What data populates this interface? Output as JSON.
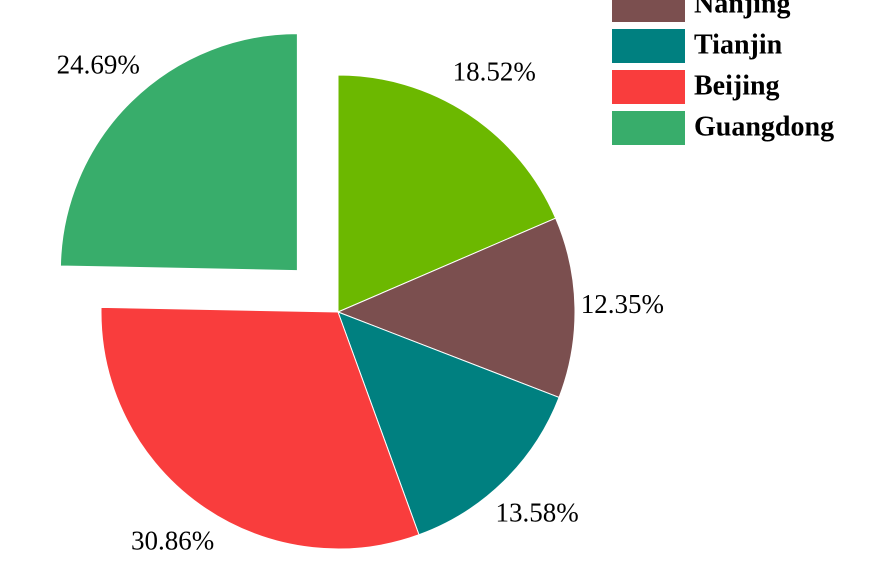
{
  "chart_data": {
    "type": "pie",
    "categories": [
      null,
      "Nanjing",
      "Tianjin",
      "Beijing",
      "Guangdong"
    ],
    "values": [
      18.52,
      12.35,
      13.58,
      30.86,
      24.69
    ],
    "value_labels": [
      "18.52%",
      "12.35%",
      "13.58%",
      "30.86%",
      "24.69%"
    ],
    "colors": [
      "#6cb800",
      "#7b4f4f",
      "#008080",
      "#f93d3d",
      "#38ad6b"
    ],
    "explode": [
      false,
      false,
      false,
      false,
      true
    ],
    "start_angle": 90,
    "direction": "clockwise",
    "legend": "upper right"
  }
}
